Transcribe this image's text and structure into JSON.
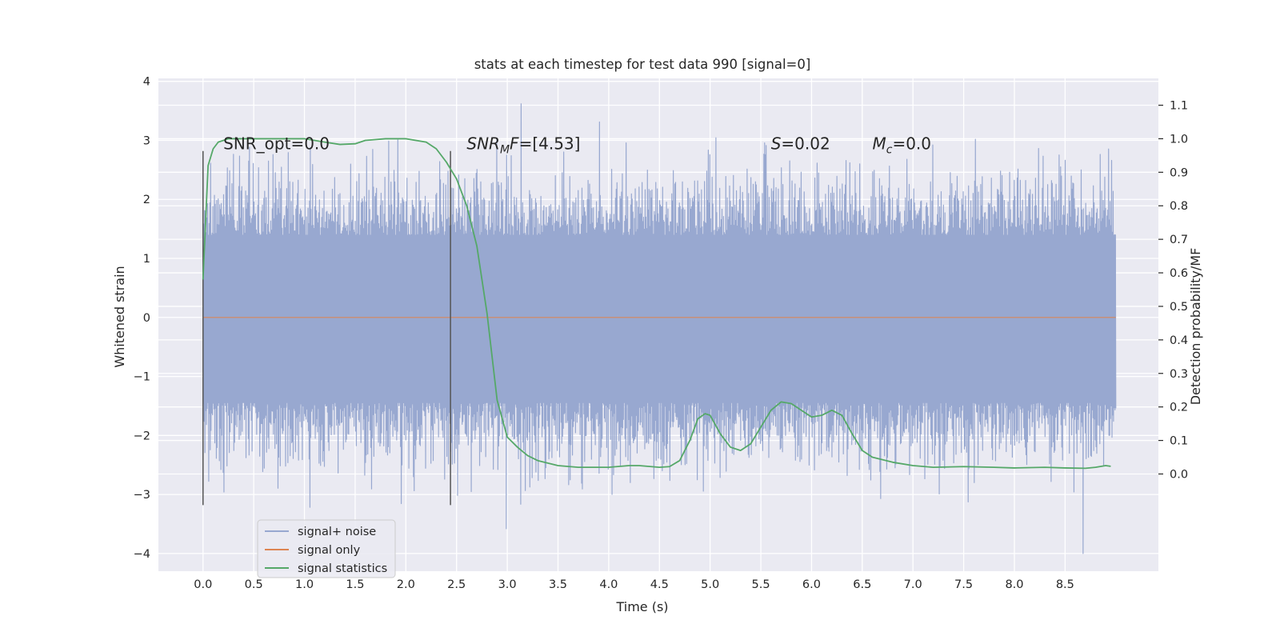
{
  "chart_data": {
    "type": "line",
    "title": "stats at each timestep for test data 990 [signal=0]",
    "xlabel": "Time (s)",
    "ylabel": "Whitened strain",
    "ylabel_right": "Detection probability/MF",
    "xlim": [
      -0.44,
      9.42
    ],
    "ylim": [
      -4.3,
      4.05
    ],
    "ylim_right": [
      -0.29,
      1.18
    ],
    "x_ticks": [
      0.0,
      0.5,
      1.0,
      1.5,
      2.0,
      2.5,
      3.0,
      3.5,
      4.0,
      4.5,
      5.0,
      5.5,
      6.0,
      6.5,
      7.0,
      7.5,
      8.0,
      8.5
    ],
    "x_tick_labels": [
      "0.0",
      "0.5",
      "1.0",
      "1.5",
      "2.0",
      "2.5",
      "3.0",
      "3.5",
      "4.0",
      "4.5",
      "5.0",
      "5.5",
      "6.0",
      "6.5",
      "7.0",
      "7.5",
      "8.0",
      "8.5"
    ],
    "y_ticks": [
      -4,
      -3,
      -2,
      -1,
      0,
      1,
      2,
      3,
      4
    ],
    "y_tick_labels": [
      "−4",
      "−3",
      "−2",
      "−1",
      "0",
      "1",
      "2",
      "3",
      "4"
    ],
    "y_ticks_right": [
      0.0,
      0.1,
      0.2,
      0.3,
      0.4,
      0.5,
      0.6,
      0.7,
      0.8,
      0.9,
      1.0,
      1.1
    ],
    "y_tick_labels_right": [
      "0.0",
      "0.1",
      "0.2",
      "0.3",
      "0.4",
      "0.5",
      "0.6",
      "0.7",
      "0.8",
      "0.9",
      "1.0",
      "1.1"
    ],
    "grid": true,
    "legend_position": "bottom-left",
    "background": "#eaeaf2",
    "annotations": [
      {
        "kind": "plain",
        "text": "SNR_opt=0.0",
        "x": 0.2,
        "y": 2.85
      },
      {
        "kind": "snrmf",
        "base": "SNR",
        "sub": "M",
        "mid": "F",
        "rest": "=[4.53]",
        "x": 2.6,
        "y": 2.85
      },
      {
        "kind": "sym",
        "base": "S",
        "sub": "",
        "rest": "=0.02",
        "x": 5.6,
        "y": 2.85
      },
      {
        "kind": "sym",
        "base": "M",
        "sub": "c",
        "rest": "=0.0",
        "x": 6.6,
        "y": 2.85
      }
    ],
    "vertical_markers": [
      {
        "x": 0.0,
        "y_from": -3.18,
        "y_to": 2.82
      },
      {
        "x": 2.44,
        "y_from": -3.18,
        "y_to": 2.82
      }
    ],
    "series": [
      {
        "name": "signal+ noise",
        "color": "#98a8d0",
        "kind": "noise",
        "x_range": [
          0.0,
          9.0
        ],
        "band_y": [
          -1.45,
          1.4
        ],
        "extreme_min": -4.0,
        "extreme_max": 3.62
      },
      {
        "name": "signal only",
        "color": "#dd8452",
        "kind": "constant",
        "x_range": [
          0.0,
          9.0
        ],
        "y": 0.0
      },
      {
        "name": "signal statistics",
        "color": "#55a868",
        "kind": "line",
        "axis": "right",
        "x": [
          0.0,
          0.05,
          0.1,
          0.15,
          0.25,
          0.4,
          0.6,
          0.8,
          1.0,
          1.2,
          1.35,
          1.5,
          1.6,
          1.8,
          2.0,
          2.2,
          2.3,
          2.4,
          2.5,
          2.6,
          2.7,
          2.8,
          2.9,
          3.0,
          3.1,
          3.2,
          3.3,
          3.5,
          3.7,
          4.0,
          4.2,
          4.3,
          4.5,
          4.6,
          4.7,
          4.8,
          4.88,
          4.95,
          5.0,
          5.1,
          5.2,
          5.3,
          5.4,
          5.5,
          5.6,
          5.7,
          5.8,
          5.9,
          6.0,
          6.1,
          6.2,
          6.3,
          6.4,
          6.5,
          6.6,
          6.8,
          7.0,
          7.2,
          7.5,
          7.8,
          8.0,
          8.3,
          8.5,
          8.7,
          8.8,
          8.9,
          8.95
        ],
        "y": [
          0.58,
          0.92,
          0.97,
          0.99,
          1.0,
          1.0,
          1.0,
          1.0,
          1.0,
          0.99,
          0.983,
          0.985,
          0.995,
          1.0,
          1.0,
          0.99,
          0.97,
          0.93,
          0.88,
          0.8,
          0.68,
          0.48,
          0.22,
          0.11,
          0.08,
          0.055,
          0.04,
          0.025,
          0.02,
          0.02,
          0.025,
          0.025,
          0.02,
          0.022,
          0.04,
          0.1,
          0.165,
          0.18,
          0.175,
          0.12,
          0.08,
          0.07,
          0.09,
          0.14,
          0.19,
          0.215,
          0.21,
          0.19,
          0.17,
          0.175,
          0.19,
          0.175,
          0.12,
          0.07,
          0.05,
          0.035,
          0.025,
          0.02,
          0.022,
          0.02,
          0.018,
          0.02,
          0.018,
          0.017,
          0.02,
          0.025,
          0.023
        ]
      }
    ]
  }
}
